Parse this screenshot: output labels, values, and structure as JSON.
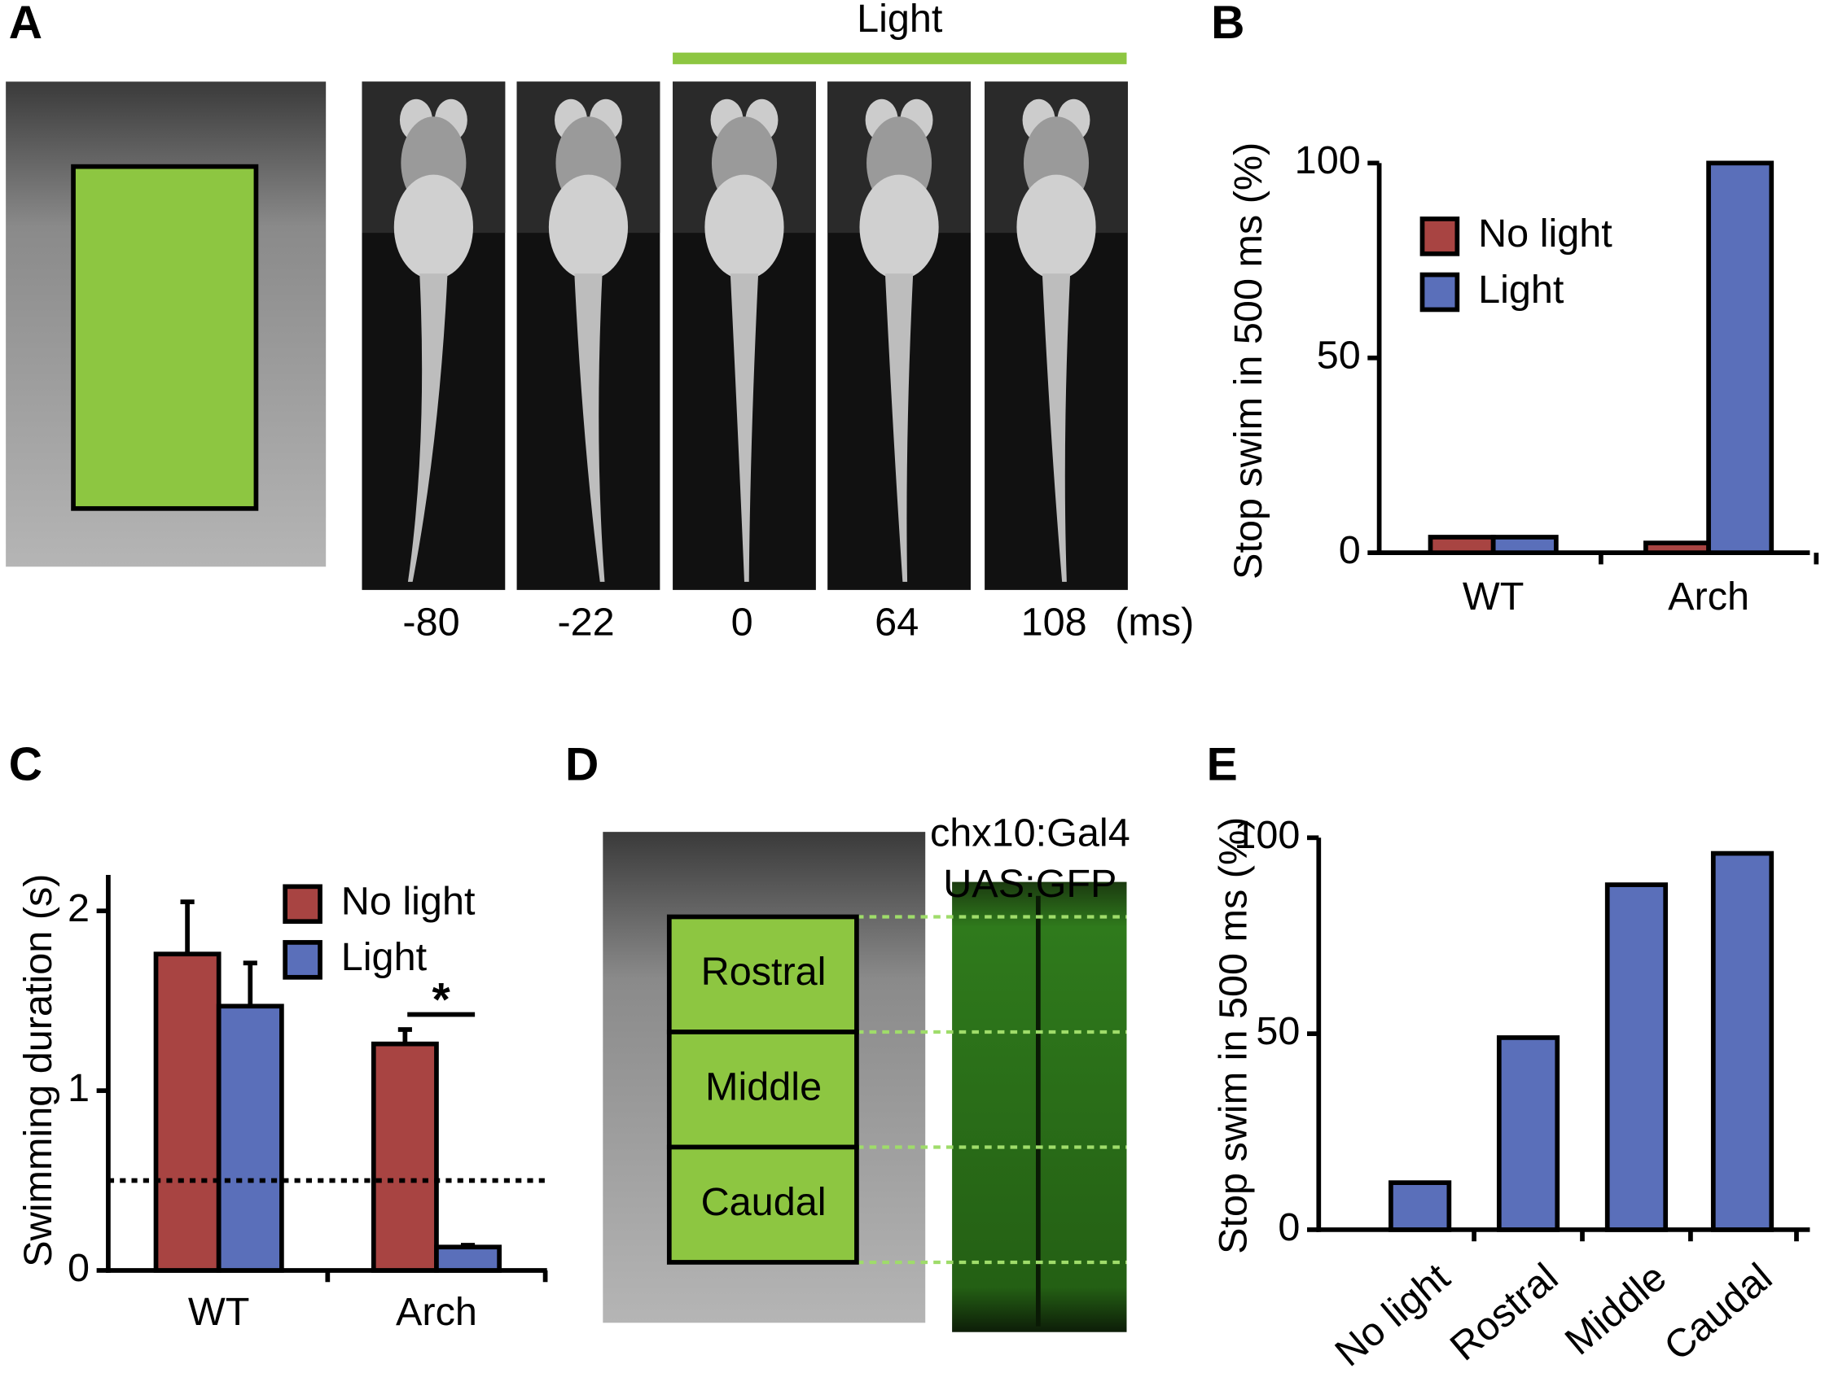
{
  "panel_letters": [
    "A",
    "B",
    "C",
    "D",
    "E"
  ],
  "panel_a": {
    "light_label": "Light",
    "times": [
      "-80",
      "-22",
      "0",
      "64",
      "108"
    ],
    "unit": "(ms)"
  },
  "panel_d": {
    "line_labels": [
      "chx10:Gal4",
      "UAS:GFP"
    ],
    "regions": [
      "Rostral",
      "Middle",
      "Caudal"
    ]
  },
  "chart_data": [
    {
      "type": "bar",
      "y_label": "Stop swim in 500 ms (%)",
      "categories": [
        "WT",
        "Arch"
      ],
      "series": [
        {
          "name": "No light",
          "color": "#a84442",
          "values": [
            4,
            2.5
          ]
        },
        {
          "name": "Light",
          "color": "#5a6fba",
          "values": [
            4,
            100
          ]
        }
      ],
      "ylim": [
        0,
        100
      ],
      "yticks": [
        0,
        50,
        100
      ]
    },
    {
      "type": "bar",
      "y_label": "Swimming duration (s)",
      "categories": [
        "WT",
        "Arch"
      ],
      "series": [
        {
          "name": "No light",
          "color": "#a84442",
          "values": [
            1.76,
            1.26
          ],
          "errors": [
            0.29,
            0.08
          ]
        },
        {
          "name": "Light",
          "color": "#5a6fba",
          "values": [
            1.47,
            0.13
          ],
          "errors": [
            0.24,
            0.01
          ]
        }
      ],
      "ylim": [
        0,
        2.2
      ],
      "yticks": [
        0,
        1,
        2
      ],
      "reference_line": 0.5,
      "annotation": "*"
    },
    {
      "type": "bar",
      "y_label": "Stop swim in 500 ms (%)",
      "categories": [
        "No light",
        "Rostral",
        "Middle",
        "Caudal"
      ],
      "values": [
        12,
        49,
        88,
        96
      ],
      "color": "#5a6fba",
      "ylim": [
        0,
        100
      ],
      "yticks": [
        0,
        50,
        100
      ]
    }
  ]
}
